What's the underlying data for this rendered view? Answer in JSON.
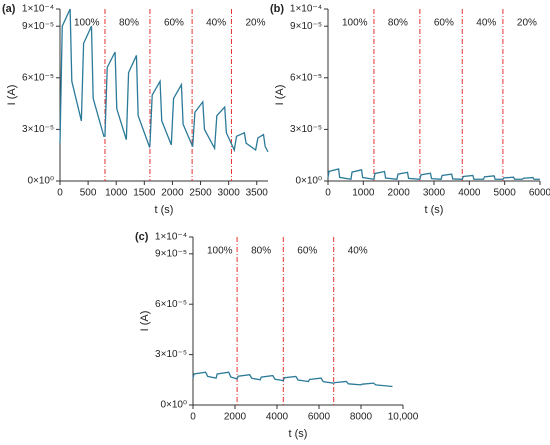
{
  "chart_data": [
    {
      "type": "line",
      "panel": "(a)",
      "xlabel": "t (s)",
      "ylabel": "I (A)",
      "xlim": [
        0,
        3700
      ],
      "xticks": [
        0,
        500,
        1000,
        1500,
        2000,
        2500,
        3000,
        3500
      ],
      "ylim": [
        0,
        0.0001
      ],
      "yticks": [
        {
          "value": 0,
          "label": "0×10⁰"
        },
        {
          "value": 3e-05,
          "label": "3×10⁻⁵"
        },
        {
          "value": 6e-05,
          "label": "6×10⁻⁵"
        },
        {
          "value": 9e-05,
          "label": "9×10⁻⁵"
        },
        {
          "value": 0.0001,
          "label": "1×10⁻⁴"
        }
      ],
      "x": [
        0,
        40,
        180,
        210,
        380,
        420,
        560,
        590,
        780,
        800,
        840,
        980,
        1010,
        1180,
        1220,
        1360,
        1390,
        1590,
        1600,
        1640,
        1780,
        1810,
        1980,
        2020,
        2160,
        2190,
        2360,
        2400,
        2540,
        2570,
        2750,
        2790,
        2930,
        2960,
        3100,
        3140,
        3280,
        3310,
        3480,
        3520,
        3620,
        3650,
        3700
      ],
      "series": [
        {
          "color": "#2b7a98",
          "values": [
            2.2e-05,
            9e-05,
            0.0001,
            5.8e-05,
            3.5e-05,
            8e-05,
            9e-05,
            4.8e-05,
            2.6e-05,
            2.6e-05,
            6.6e-05,
            7.5e-05,
            4.2e-05,
            2.4e-05,
            6.3e-05,
            7.3e-05,
            3.8e-05,
            2e-05,
            2.1e-05,
            5e-05,
            5.8e-05,
            3.5e-05,
            2.1e-05,
            4.8e-05,
            5.6e-05,
            3.3e-05,
            2e-05,
            4e-05,
            4.6e-05,
            3e-05,
            1.9e-05,
            3.8e-05,
            4.3e-05,
            2.8e-05,
            1.8e-05,
            2.6e-05,
            2.8e-05,
            2.2e-05,
            1.8e-05,
            2.5e-05,
            2.7e-05,
            2e-05,
            1.7e-05
          ]
        }
      ],
      "vlines": {
        "color": "#e8312f",
        "x": [
          800,
          1600,
          2350,
          3050
        ]
      },
      "annotations": [
        "100%",
        "80%",
        "60%",
        "40%",
        "20%"
      ]
    },
    {
      "type": "line",
      "panel": "(b)",
      "xlabel": "t (s)",
      "ylabel": "I (A)",
      "xlim": [
        0,
        6000
      ],
      "xticks": [
        0,
        1000,
        2000,
        3000,
        4000,
        5000,
        6000
      ],
      "ylim": [
        0,
        0.0001
      ],
      "yticks": [
        {
          "value": 0,
          "label": "0×10⁰"
        },
        {
          "value": 3e-05,
          "label": "3×10⁻⁵"
        },
        {
          "value": 6e-05,
          "label": "6×10⁻⁵"
        },
        {
          "value": 9e-05,
          "label": "9×10⁻⁵"
        },
        {
          "value": 0.0001,
          "label": "1×10⁻⁴"
        }
      ],
      "x": [
        0,
        30,
        300,
        330,
        650,
        680,
        950,
        980,
        1300,
        1330,
        1600,
        1630,
        1950,
        1980,
        2250,
        2280,
        2600,
        2630,
        2900,
        2930,
        3200,
        3230,
        3500,
        3530,
        3800,
        3830,
        4100,
        4130,
        4400,
        4430,
        4700,
        4730,
        4950,
        4980,
        5250,
        5280,
        5500,
        5530,
        5800,
        5830,
        6000
      ],
      "series": [
        {
          "color": "#2b7a98",
          "values": [
            2e-06,
            5.6e-06,
            7e-06,
            2.1e-06,
            1e-06,
            5.2e-06,
            6.5e-06,
            2e-06,
            1e-06,
            4.4e-06,
            5.5e-06,
            1.7e-06,
            1e-06,
            4e-06,
            5e-06,
            1.5e-06,
            1e-06,
            3.6e-06,
            4.5e-06,
            1.4e-06,
            1e-06,
            3.2e-06,
            4e-06,
            1.2e-06,
            1e-06,
            2.6e-06,
            3.2e-06,
            1e-06,
            1e-06,
            2.4e-06,
            3e-06,
            1e-06,
            1e-06,
            1.8e-06,
            2.2e-06,
            1e-06,
            1e-06,
            1.6e-06,
            2e-06,
            1e-06,
            1e-06
          ]
        }
      ],
      "vlines": {
        "color": "#e8312f",
        "x": [
          1300,
          2600,
          3800,
          4950
        ]
      },
      "annotations": [
        "100%",
        "80%",
        "60%",
        "40%",
        "20%"
      ]
    },
    {
      "type": "line",
      "panel": "(c)",
      "xlabel": "t (s)",
      "ylabel": "I (A)",
      "xlim": [
        0,
        10000
      ],
      "xticks": [
        0,
        2000,
        4000,
        6000,
        8000,
        {
          "value": 10000,
          "label": "10,000"
        }
      ],
      "ylim": [
        0,
        0.0001
      ],
      "yticks": [
        {
          "value": 0,
          "label": "0×10⁰"
        },
        {
          "value": 3e-05,
          "label": "3×10⁻⁵"
        },
        {
          "value": 6e-05,
          "label": "6×10⁻⁵"
        },
        {
          "value": 9e-05,
          "label": "9×10⁻⁵"
        },
        {
          "value": 0.0001,
          "label": "1×10⁻⁴"
        }
      ],
      "x": [
        0,
        50,
        600,
        700,
        1100,
        1150,
        1700,
        1800,
        2100,
        2150,
        2700,
        2800,
        3200,
        3250,
        3800,
        3900,
        4300,
        4350,
        4900,
        5000,
        5500,
        5550,
        6100,
        6200,
        6700,
        6750,
        7300,
        7400,
        8000,
        8050,
        8600,
        8700,
        9500
      ],
      "series": [
        {
          "color": "#2b7a98",
          "values": [
            1.6e-05,
            1.85e-05,
            1.95e-05,
            1.7e-05,
            1.6e-05,
            1.85e-05,
            1.95e-05,
            1.67e-05,
            1.55e-05,
            1.71e-05,
            1.8e-05,
            1.59e-05,
            1.5e-05,
            1.66e-05,
            1.75e-05,
            1.54e-05,
            1.45e-05,
            1.62e-05,
            1.7e-05,
            1.49e-05,
            1.4e-05,
            1.52e-05,
            1.6e-05,
            1.39e-05,
            1.3e-05,
            1.33e-05,
            1.4e-05,
            1.26e-05,
            1.2e-05,
            1.24e-05,
            1.3e-05,
            1.2e-05,
            1.1e-05
          ]
        }
      ],
      "vlines": {
        "color": "#e8312f",
        "x": [
          2100,
          4300,
          6700
        ]
      },
      "annotations": [
        "100%",
        "80%",
        "60%",
        "40%"
      ]
    }
  ]
}
